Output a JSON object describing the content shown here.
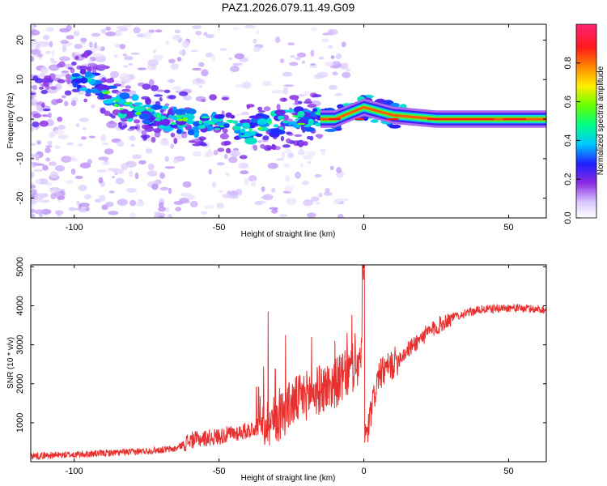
{
  "chart_data": [
    {
      "type": "heatmap",
      "title": "PAZ1.2026.079.11.49.G09",
      "xlabel": "Height of straight line (km)",
      "ylabel": "Frequency (Hz)",
      "xlim": [
        -115,
        63
      ],
      "ylim": [
        -25,
        24
      ],
      "xticks": [
        -100,
        -50,
        0,
        50
      ],
      "yticks": [
        20,
        10,
        0,
        -10,
        -20
      ],
      "colorbar": {
        "label": "Normalized spectral amplitude",
        "range": [
          0,
          1
        ],
        "ticks": [
          0.0,
          0.2,
          0.4,
          0.6,
          0.8
        ],
        "tick_labels": [
          "0.0",
          "0.2",
          "0.4",
          "0.6",
          "0.8"
        ]
      },
      "ridge": [
        {
          "height": -112,
          "freq": 4
        },
        {
          "height": -100,
          "freq": 9
        },
        {
          "height": -95,
          "freq": 10
        },
        {
          "height": -85,
          "freq": 4
        },
        {
          "height": -70,
          "freq": 1
        },
        {
          "height": -60,
          "freq": -1
        },
        {
          "height": -50,
          "freq": -1
        },
        {
          "height": -40,
          "freq": -3
        },
        {
          "height": -30,
          "freq": -1
        },
        {
          "height": -20,
          "freq": 0
        },
        {
          "height": -10,
          "freq": 0
        },
        {
          "height": 0,
          "freq": 3
        },
        {
          "height": 10,
          "freq": 1
        },
        {
          "height": 25,
          "freq": 0
        },
        {
          "height": 63,
          "freq": 0
        }
      ]
    },
    {
      "type": "line",
      "xlabel": "Height of straight line (km)",
      "ylabel": "SNR (10 * v/v)",
      "xlim": [
        -115,
        63
      ],
      "ylim": [
        0,
        5050
      ],
      "xticks": [
        -100,
        -50,
        0,
        50
      ],
      "yticks": [
        1000,
        2000,
        3000,
        4000,
        5000
      ],
      "color": "#e8302f",
      "envelope": [
        {
          "x": -115,
          "y": 150
        },
        {
          "x": -100,
          "y": 180
        },
        {
          "x": -80,
          "y": 250
        },
        {
          "x": -65,
          "y": 330
        },
        {
          "x": -60,
          "y": 550
        },
        {
          "x": -50,
          "y": 650
        },
        {
          "x": -40,
          "y": 800
        },
        {
          "x": -30,
          "y": 1100
        },
        {
          "x": -25,
          "y": 1500
        },
        {
          "x": -20,
          "y": 1700
        },
        {
          "x": -10,
          "y": 2000
        },
        {
          "x": -5,
          "y": 2300
        },
        {
          "x": -1,
          "y": 2600
        },
        {
          "x": 0,
          "y": 4900
        },
        {
          "x": 1,
          "y": 700
        },
        {
          "x": 5,
          "y": 2200
        },
        {
          "x": 10,
          "y": 2500
        },
        {
          "x": 20,
          "y": 3200
        },
        {
          "x": 30,
          "y": 3700
        },
        {
          "x": 40,
          "y": 3900
        },
        {
          "x": 50,
          "y": 3950
        },
        {
          "x": 63,
          "y": 3900
        }
      ],
      "spikes": [
        {
          "x": -33,
          "y": 3850
        },
        {
          "x": -27,
          "y": 3250
        },
        {
          "x": -18,
          "y": 3200
        },
        {
          "x": -10,
          "y": 3100
        },
        {
          "x": -3,
          "y": 3300
        }
      ]
    }
  ]
}
